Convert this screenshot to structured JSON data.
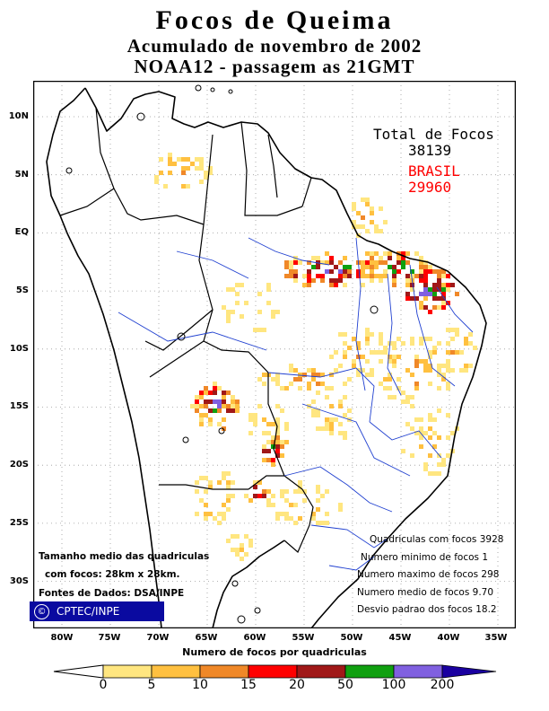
{
  "title": {
    "line1": "Focos de Queima",
    "line2": "Acumulado de novembro de 2002",
    "line3": "NOAA12 - passagem as 21GMT"
  },
  "totals": {
    "label": "Total de Focos",
    "total": "38139",
    "country_label": "BRASIL",
    "country_total": "29960",
    "country_color": "#ff0000"
  },
  "axes": {
    "latitude_ticks": [
      "10N",
      "5N",
      "EQ",
      "5S",
      "10S",
      "15S",
      "20S",
      "25S",
      "30S"
    ],
    "longitude_ticks": [
      "80W",
      "75W",
      "70W",
      "65W",
      "60W",
      "55W",
      "50W",
      "45W",
      "40W",
      "35W"
    ]
  },
  "stats": [
    "Quadriculas com focos 3928",
    "Numero minimo de focos 1",
    "Numero maximo de focos 298",
    "Numero medio de focos 9.70",
    "Desvio padrao dos focos 18.2"
  ],
  "info": {
    "line1": "Tamanho medio das quadriculas",
    "line2": "com focos: 28km x 28km.",
    "line3": "Fontes de Dados: DSA/INPE"
  },
  "credit": {
    "symbol": "©",
    "text": "CPTEC/INPE"
  },
  "colorbar": {
    "title": "Numero de focos por quadriculas",
    "labels": [
      "0",
      "5",
      "10",
      "15",
      "20",
      "50",
      "100",
      "200"
    ],
    "colors": [
      "#ffe680",
      "#ffc040",
      "#f08828",
      "#ff0000",
      "#a01818",
      "#10a010",
      "#8060e0",
      "#1a00a0"
    ]
  }
}
